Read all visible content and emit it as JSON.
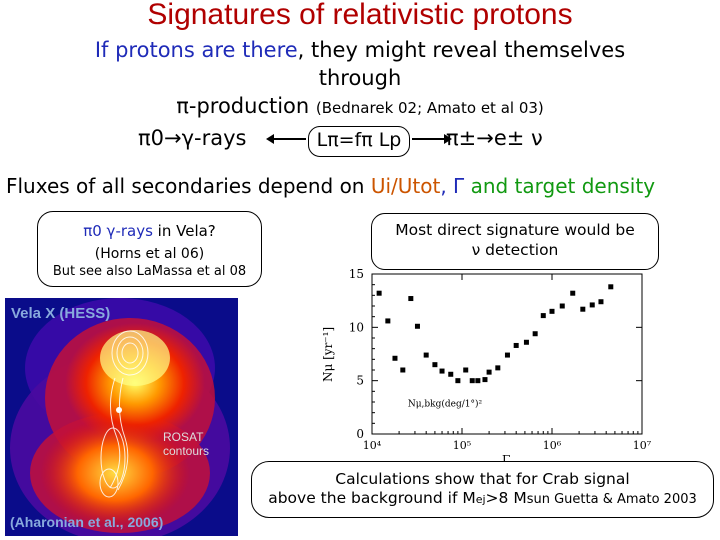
{
  "title": "Signatures of relativistic protons",
  "intro": {
    "part1": "If protons are there",
    "part2": ", they might reveal themselves",
    "line2": "through",
    "pi_production": "π-production",
    "pi_production_ref": "(Bednarek 02; Amato et al 03)"
  },
  "flow": {
    "left": "π0→γ-rays",
    "center": "Lπ=fπ Lp",
    "right": "π±→e± ν"
  },
  "fluxes": {
    "prefix": "Fluxes of all secondaries depend on ",
    "ratio": "Ui/Utot",
    "gamma": ", Γ ",
    "suffix": "and target density"
  },
  "vela_box": {
    "line1_prefix": "π0 γ-rays",
    "line1_suffix": " in Vela?",
    "line2": "(Horns et al 06)",
    "line3": "But see also LaMassa et al 08"
  },
  "neutrino_box": {
    "line1": "Most direct signature would be",
    "line2": "ν detection"
  },
  "vela_image": {
    "label": "Vela X (HESS)",
    "rosat1": "ROSAT",
    "rosat2": "contours",
    "credit": "(Aharonian et al., 2006)"
  },
  "plot": {
    "ylabel": "Nμ [yr⁻¹]",
    "xlabel": "Γ",
    "annotation": "Nμ,bkg(deg/1°)²",
    "y_ticks": [
      "0",
      "5",
      "10",
      "15"
    ],
    "x_ticks": [
      "10⁴",
      "10⁵",
      "10⁶",
      "10⁷"
    ]
  },
  "chart_data": {
    "type": "scatter",
    "xscale": "log",
    "xlim": [
      10000,
      10000000
    ],
    "ylim": [
      0,
      15
    ],
    "y_ticks": [
      0,
      5,
      10,
      15
    ],
    "x_ticks": [
      10000,
      100000,
      1000000,
      10000000
    ],
    "points": [
      [
        12000,
        13.2
      ],
      [
        15000,
        10.6
      ],
      [
        18000,
        7.1
      ],
      [
        22000,
        6.0
      ],
      [
        27000,
        12.7
      ],
      [
        32000,
        10.1
      ],
      [
        40000,
        7.4
      ],
      [
        50000,
        6.5
      ],
      [
        60000,
        5.9
      ],
      [
        75000,
        5.6
      ],
      [
        90000,
        5.0
      ],
      [
        110000,
        6.0
      ],
      [
        130000,
        5.0
      ],
      [
        150000,
        5.0
      ],
      [
        180000,
        5.1
      ],
      [
        200000,
        5.8
      ],
      [
        250000,
        6.2
      ],
      [
        320000,
        7.4
      ],
      [
        400000,
        8.3
      ],
      [
        520000,
        8.6
      ],
      [
        650000,
        9.4
      ],
      [
        800000,
        11.1
      ],
      [
        1000000,
        11.5
      ],
      [
        1300000,
        12.0
      ],
      [
        1700000,
        13.2
      ],
      [
        2200000,
        11.7
      ],
      [
        2800000,
        12.1
      ],
      [
        3500000,
        12.4
      ],
      [
        4500000,
        13.8
      ]
    ]
  },
  "bottom_box": {
    "line1": "Calculations show that for Crab signal",
    "line2_a": "above the background if M",
    "line2_ej": "ej",
    "line2_b": ">8 M",
    "line2_sun": "sun",
    "line2_ref": " Guetta & Amato 2003"
  },
  "colors": {
    "title": "#b00000",
    "highlight_blue": "#1f2bb8",
    "highlight_green": "#119911",
    "plot_points": "#000000"
  }
}
